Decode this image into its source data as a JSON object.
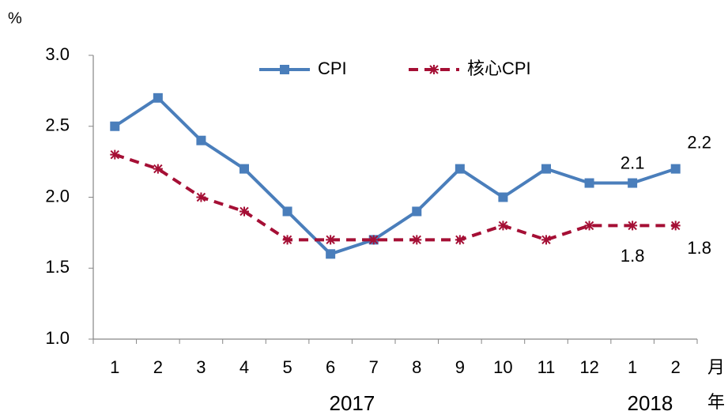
{
  "chart_data": {
    "type": "line",
    "y_unit": "%",
    "x_unit_month": "月",
    "x_unit_year": "年",
    "categories": [
      "1",
      "2",
      "3",
      "4",
      "5",
      "6",
      "7",
      "8",
      "9",
      "10",
      "11",
      "12",
      "1",
      "2"
    ],
    "years": [
      {
        "label": "2017",
        "from": 0,
        "to": 11
      },
      {
        "label": "2018",
        "from": 12,
        "to": 13
      }
    ],
    "series": [
      {
        "name": "CPI",
        "color": "#4a7ebb",
        "dash": false,
        "marker": "square",
        "values": [
          2.5,
          2.7,
          2.4,
          2.2,
          1.9,
          1.6,
          1.7,
          1.9,
          2.2,
          2.0,
          2.2,
          2.1,
          2.1,
          2.2
        ]
      },
      {
        "name": "核心CPI",
        "color": "#a50f35",
        "dash": true,
        "marker": "star",
        "values": [
          2.3,
          2.2,
          2.0,
          1.9,
          1.7,
          1.7,
          1.7,
          1.7,
          1.7,
          1.8,
          1.7,
          1.8,
          1.8,
          1.8
        ]
      }
    ],
    "ylim": [
      1.0,
      3.0
    ],
    "yticks": [
      {
        "value": 1.0,
        "label": "1.0"
      },
      1.5,
      {
        "value": 2.0,
        "label": "2.0"
      },
      2.5,
      {
        "value": 3.0,
        "label": "3.0"
      }
    ],
    "grid": false
  }
}
